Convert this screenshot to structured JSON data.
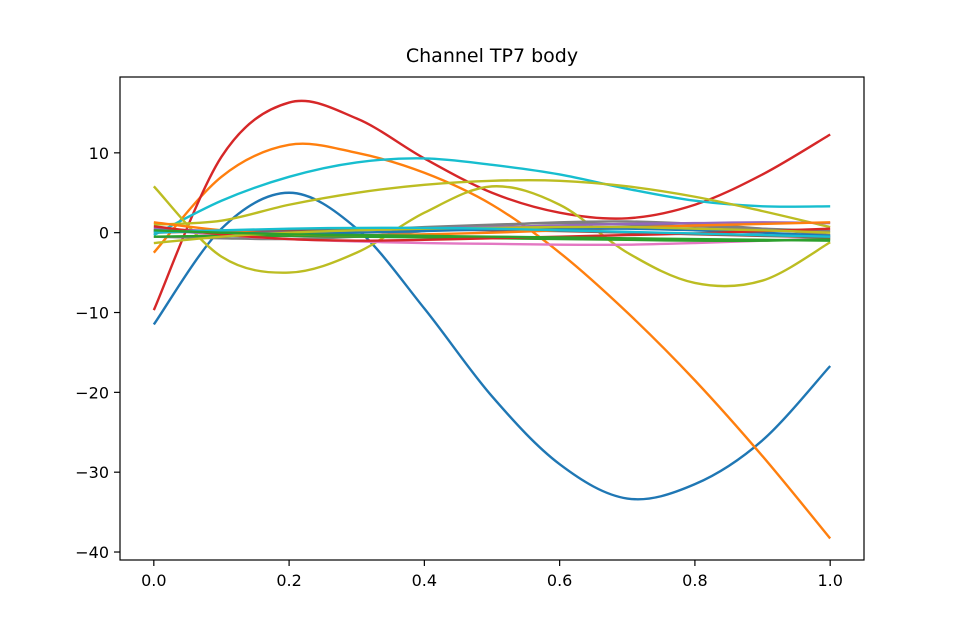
{
  "chart_data": {
    "type": "line",
    "title": "Channel TP7 body",
    "xlabel": "",
    "ylabel": "",
    "xlim": [
      -0.05,
      1.05
    ],
    "ylim": [
      -41,
      19.5
    ],
    "xticks": [
      0.0,
      0.2,
      0.4,
      0.6,
      0.8,
      1.0
    ],
    "xtick_labels": [
      "0.0",
      "0.2",
      "0.4",
      "0.6",
      "0.8",
      "1.0"
    ],
    "yticks": [
      -40,
      -30,
      -20,
      -10,
      0,
      10
    ],
    "ytick_labels": [
      "−40",
      "−30",
      "−20",
      "−10",
      "0",
      "10"
    ],
    "grid": false,
    "legend": "none",
    "x": [
      0.0,
      0.1,
      0.2,
      0.3,
      0.4,
      0.5,
      0.6,
      0.7,
      0.8,
      0.9,
      1.0
    ],
    "series": [
      {
        "color": "#1f77b4",
        "values": [
          -11.5,
          0.5,
          5.0,
          0.5,
          -9.5,
          -20.5,
          -29.0,
          -33.3,
          -31.5,
          -26.0,
          -16.7
        ]
      },
      {
        "color": "#ff7f0e",
        "values": [
          -2.5,
          7.0,
          11.0,
          10.0,
          7.5,
          3.5,
          -2.5,
          -10.0,
          -18.5,
          -28.0,
          -38.3
        ]
      },
      {
        "color": "#d62728",
        "values": [
          -9.7,
          9.5,
          16.3,
          14.3,
          9.3,
          5.0,
          2.5,
          1.8,
          3.5,
          7.3,
          12.3
        ]
      },
      {
        "color": "#17becf",
        "values": [
          -0.3,
          4.0,
          7.0,
          8.8,
          9.3,
          8.5,
          7.3,
          5.5,
          4.0,
          3.3,
          3.3
        ]
      },
      {
        "color": "#bcbd22",
        "values": [
          1.0,
          1.5,
          3.5,
          5.0,
          6.0,
          6.5,
          6.5,
          5.8,
          4.5,
          2.7,
          0.7
        ]
      },
      {
        "color": "#bcbd22",
        "values": [
          5.8,
          -3.0,
          -5.0,
          -2.5,
          2.5,
          5.8,
          3.5,
          -2.5,
          -6.3,
          -6.0,
          -1.2
        ]
      },
      {
        "color": "#7f7f7f",
        "values": [
          0.3,
          0.0,
          -0.2,
          0.3,
          0.7,
          1.0,
          1.2,
          1.0,
          0.8,
          0.5,
          0.2
        ]
      },
      {
        "color": "#7f7f7f",
        "values": [
          -0.5,
          -0.7,
          -0.8,
          -0.5,
          0.2,
          0.9,
          1.3,
          1.4,
          1.1,
          0.5,
          -0.3
        ]
      },
      {
        "color": "#e377c2",
        "values": [
          0.5,
          -0.3,
          -0.8,
          -1.1,
          -1.3,
          -1.4,
          -1.5,
          -1.5,
          -1.3,
          -1.0,
          -0.7
        ]
      },
      {
        "color": "#9467bd",
        "values": [
          0.5,
          0.2,
          0.2,
          0.3,
          0.5,
          0.7,
          0.9,
          1.1,
          1.2,
          1.3,
          1.2
        ]
      },
      {
        "color": "#2ca02c",
        "values": [
          -0.5,
          -0.4,
          -0.4,
          -0.5,
          -0.6,
          -0.7,
          -0.8,
          -0.9,
          -1.0,
          -1.0,
          -0.8
        ]
      },
      {
        "color": "#8c564b",
        "values": [
          0.0,
          0.2,
          0.3,
          0.4,
          0.4,
          0.3,
          0.2,
          0.0,
          -0.2,
          -0.4,
          -0.6
        ]
      },
      {
        "color": "#ff7f0e",
        "values": [
          1.3,
          0.3,
          -0.2,
          -0.3,
          -0.2,
          0.0,
          0.3,
          0.6,
          0.9,
          1.1,
          1.3
        ]
      },
      {
        "color": "#1f77b4",
        "values": [
          0.2,
          0.0,
          -0.1,
          0.0,
          0.2,
          0.4,
          0.5,
          0.5,
          0.3,
          0.0,
          -0.4
        ]
      },
      {
        "color": "#d62728",
        "values": [
          0.8,
          -0.2,
          -0.8,
          -1.0,
          -0.9,
          -0.7,
          -0.5,
          -0.3,
          -0.1,
          0.2,
          0.5
        ]
      },
      {
        "color": "#bcbd22",
        "values": [
          -1.3,
          -0.5,
          0.0,
          0.3,
          0.5,
          0.6,
          0.7,
          0.7,
          0.5,
          0.3,
          0.0
        ]
      },
      {
        "color": "#17becf",
        "values": [
          0.0,
          0.3,
          0.5,
          0.6,
          0.6,
          0.5,
          0.3,
          0.1,
          -0.1,
          -0.3,
          -0.5
        ]
      },
      {
        "color": "#2ca02c",
        "values": [
          0.3,
          0.0,
          -0.2,
          -0.3,
          -0.4,
          -0.5,
          -0.6,
          -0.7,
          -0.8,
          -0.9,
          -1.0
        ]
      }
    ]
  }
}
